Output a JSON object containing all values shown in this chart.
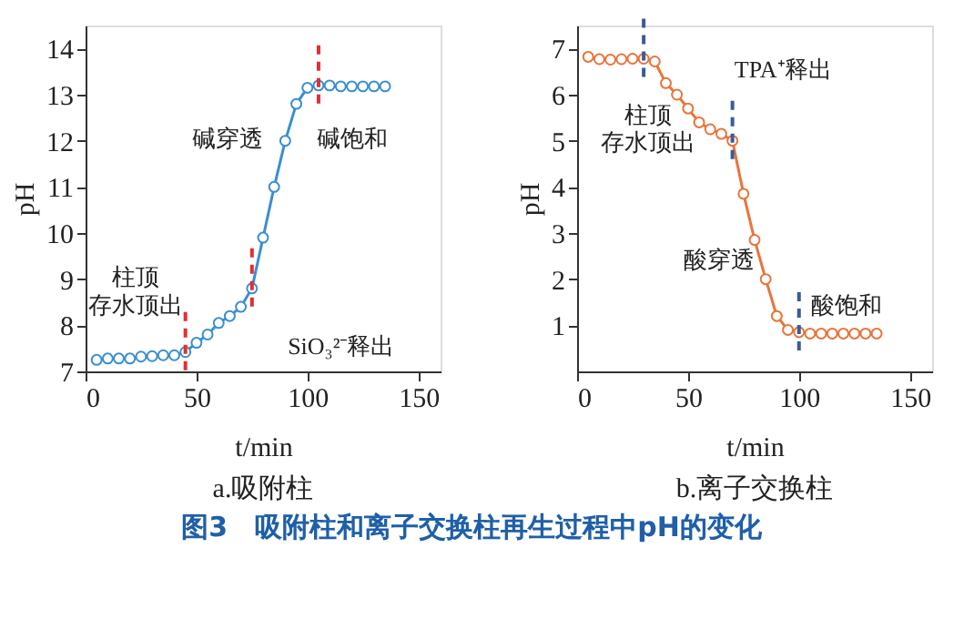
{
  "chart_data": [
    {
      "type": "line",
      "title": "a.吸附柱",
      "xlabel": "t/min",
      "ylabel": "pH",
      "marker": "circle",
      "grid": false,
      "x": [
        5,
        10,
        15,
        20,
        25,
        30,
        35,
        40,
        45,
        50,
        55,
        60,
        65,
        70,
        75,
        80,
        85,
        90,
        95,
        100,
        105,
        110,
        115,
        120,
        125,
        130,
        135
      ],
      "series": [
        {
          "color": "#3a8fd0",
          "values": [
            7.25,
            7.28,
            7.28,
            7.28,
            7.32,
            7.33,
            7.35,
            7.35,
            7.42,
            7.62,
            7.8,
            8.05,
            8.2,
            8.4,
            8.8,
            9.9,
            11.0,
            12.0,
            12.8,
            13.15,
            13.2,
            13.2,
            13.18,
            13.18,
            13.18,
            13.18,
            13.18
          ]
        }
      ],
      "xlim": [
        0,
        160
      ],
      "xticks": [
        0,
        50,
        100,
        150
      ],
      "ylim": [
        7,
        14.5
      ],
      "yticks": [
        7,
        8,
        9,
        10,
        11,
        12,
        13,
        14
      ],
      "ref_lines": [
        {
          "axis": "x",
          "value": 45,
          "color": "#e03030",
          "line_style": "dashed"
        },
        {
          "axis": "x",
          "value": 75,
          "color": "#e03030",
          "line_style": "dashed"
        },
        {
          "axis": "x",
          "value": 105,
          "color": "#e03030",
          "line_style": "dashed"
        }
      ],
      "annotations": [
        "柱顶",
        "存水顶出",
        "碱穿透",
        "碱饱和",
        "SiO₃²⁻释出",
        "图3　吸附柱和离子交换柱再生过程中pH的变化"
      ]
    },
    {
      "type": "line",
      "title": "b.离子交换柱",
      "xlabel": "t/min",
      "ylabel": "pH",
      "marker": "circle",
      "grid": false,
      "x": [
        5,
        10,
        15,
        20,
        25,
        30,
        35,
        40,
        45,
        50,
        55,
        60,
        65,
        70,
        75,
        80,
        85,
        90,
        95,
        100,
        105,
        110,
        115,
        120,
        125,
        130,
        135
      ],
      "series": [
        {
          "color": "#e8743b",
          "values": [
            6.82,
            6.77,
            6.76,
            6.77,
            6.78,
            6.78,
            6.72,
            6.25,
            6.0,
            5.7,
            5.4,
            5.25,
            5.15,
            5.0,
            3.85,
            2.85,
            2.0,
            1.2,
            0.9,
            0.85,
            0.82,
            0.82,
            0.82,
            0.82,
            0.82,
            0.82,
            0.82
          ]
        }
      ],
      "xlim": [
        0,
        160
      ],
      "xticks": [
        0,
        50,
        100,
        150
      ],
      "ylim": [
        0,
        7.5
      ],
      "yticks": [
        1,
        2,
        3,
        4,
        5,
        6,
        7
      ],
      "ref_lines": [
        {
          "axis": "x",
          "value": 30,
          "color": "#3a5a9a",
          "line_style": "dashed"
        },
        {
          "axis": "x",
          "value": 70,
          "color": "#3a5a9a",
          "line_style": "dashed"
        },
        {
          "axis": "x",
          "value": 100,
          "color": "#3a5a9a",
          "line_style": "dashed"
        }
      ],
      "annotations": [
        "柱顶",
        "存水顶出",
        "TPA⁺释出",
        "酸穿透",
        "酸饱和"
      ]
    }
  ]
}
